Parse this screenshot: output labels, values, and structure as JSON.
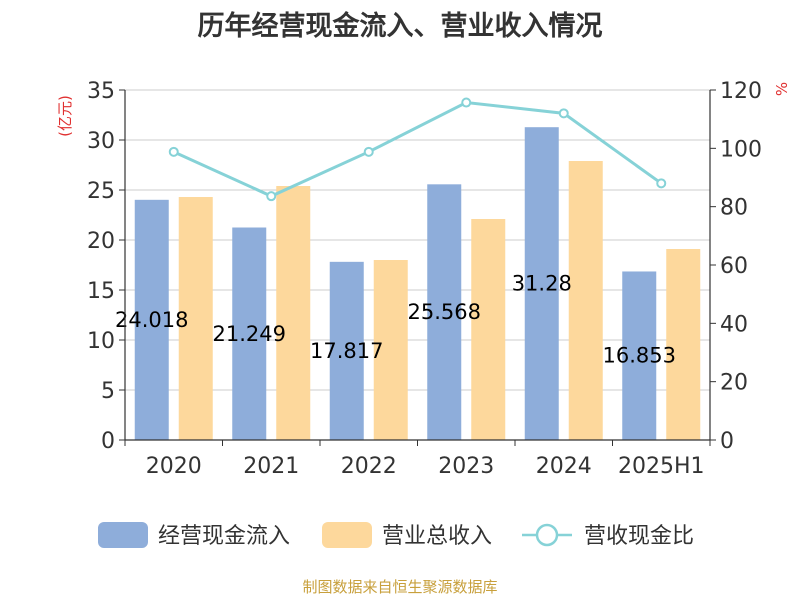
{
  "title": "历年经营现金流入、营业收入情况",
  "source": "制图数据来自恒生聚源数据库",
  "colors": {
    "cash_inflow": "#8eadda",
    "revenue": "#fdd89c",
    "ratio": "#86d2d7",
    "unit": "#e03030",
    "axis": "#333333",
    "grid": "#cccccc"
  },
  "chart_data": {
    "type": "bar",
    "categories": [
      "2020",
      "2021",
      "2022",
      "2023",
      "2024",
      "2025H1"
    ],
    "series": [
      {
        "name": "经营现金流入",
        "type": "bar",
        "axis": "left",
        "values": [
          24.018,
          21.249,
          17.817,
          25.568,
          31.28,
          16.853
        ],
        "labels": [
          "24.018",
          "21.249",
          "17.817",
          "25.568",
          "31.28",
          "16.853"
        ]
      },
      {
        "name": "营业总收入",
        "type": "bar",
        "axis": "left",
        "values": [
          24.3,
          25.4,
          18.0,
          22.1,
          27.9,
          19.1
        ]
      },
      {
        "name": "营收现金比",
        "type": "line",
        "axis": "right",
        "values": [
          98.8,
          83.6,
          98.8,
          115.7,
          112.0,
          88.0
        ]
      }
    ],
    "ylabel": "(亿元)",
    "y2label": "%",
    "ylim": [
      0,
      35
    ],
    "y2lim": [
      0,
      120
    ],
    "yticks": [
      0,
      5,
      10,
      15,
      20,
      25,
      30,
      35
    ],
    "y2ticks": [
      0,
      20,
      40,
      60,
      80,
      100,
      120
    ],
    "grid": true,
    "legend_position": "bottom"
  }
}
